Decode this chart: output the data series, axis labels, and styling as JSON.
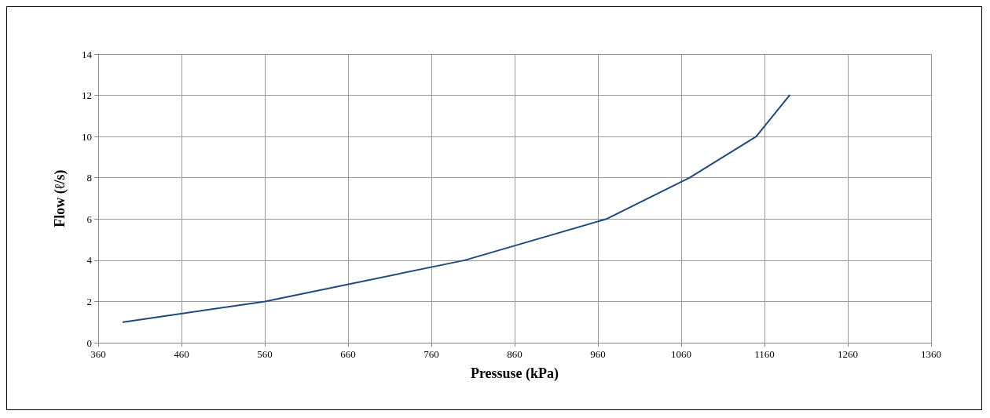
{
  "chart_data": {
    "type": "line",
    "xlabel": "Pressuse (kPa)",
    "ylabel": "Flow (ℓ/s)",
    "x": [
      390,
      560,
      800,
      970,
      1070,
      1150,
      1190
    ],
    "series": [
      {
        "color": "#1f497d",
        "values": [
          1,
          2,
          4,
          6,
          8,
          10,
          12
        ]
      }
    ],
    "xlim": [
      360,
      1360
    ],
    "xticks": [
      360,
      460,
      560,
      660,
      760,
      860,
      960,
      1060,
      1160,
      1260,
      1360
    ],
    "ylim": [
      0,
      14
    ],
    "yticks": [
      0,
      2,
      4,
      6,
      8,
      10,
      12,
      14
    ],
    "grid": true,
    "marker": "none",
    "line_style": "solid"
  }
}
